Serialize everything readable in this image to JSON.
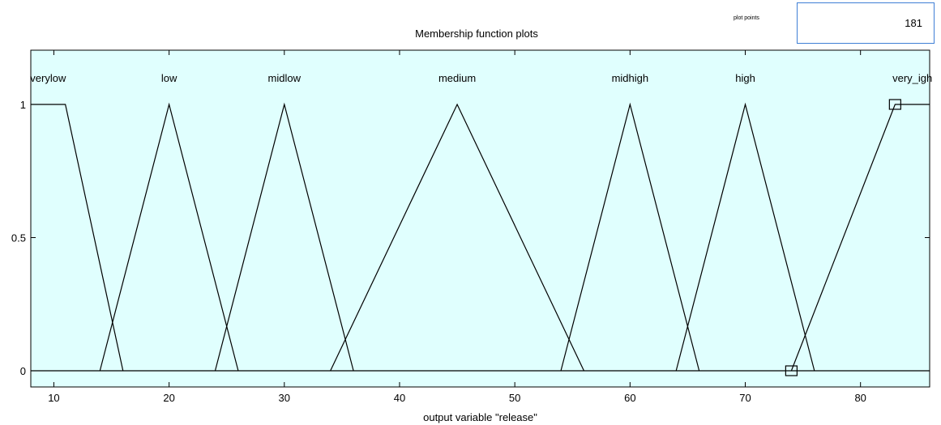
{
  "window": {
    "plot_title": "Membership function plots",
    "plot_points_label": "plot points",
    "plot_points_value": "181"
  },
  "chart_data": {
    "type": "line",
    "title": "Membership function plots",
    "xlabel": "output variable \"release\"",
    "ylabel": "",
    "xlim": [
      8,
      86
    ],
    "ylim": [
      0,
      1
    ],
    "xticks": [
      10,
      20,
      30,
      40,
      50,
      60,
      70,
      80
    ],
    "yticks": [
      0,
      0.5,
      1
    ],
    "ytick_labels": [
      "0",
      "0.5",
      "1"
    ],
    "background": "#e0fffe",
    "line_color": "#000000",
    "grid": false,
    "series": [
      {
        "name": "verylow",
        "x": [
          8,
          11,
          16
        ],
        "y": [
          1,
          1,
          0
        ]
      },
      {
        "name": "low",
        "x": [
          14,
          20,
          26
        ],
        "y": [
          0,
          1,
          0
        ]
      },
      {
        "name": "midlow",
        "x": [
          24,
          30,
          36
        ],
        "y": [
          0,
          1,
          0
        ]
      },
      {
        "name": "medium",
        "x": [
          34,
          45,
          56
        ],
        "y": [
          0,
          1,
          0
        ]
      },
      {
        "name": "midhigh",
        "x": [
          54,
          60,
          66
        ],
        "y": [
          0,
          1,
          0
        ]
      },
      {
        "name": "high",
        "x": [
          64,
          70,
          76
        ],
        "y": [
          0,
          1,
          0
        ]
      },
      {
        "name": "very_igh",
        "x": [
          74,
          83,
          86
        ],
        "y": [
          0,
          1,
          1
        ]
      }
    ],
    "selected_handles": [
      {
        "x": 83,
        "y": 1
      },
      {
        "x": 74,
        "y": 0
      }
    ]
  }
}
